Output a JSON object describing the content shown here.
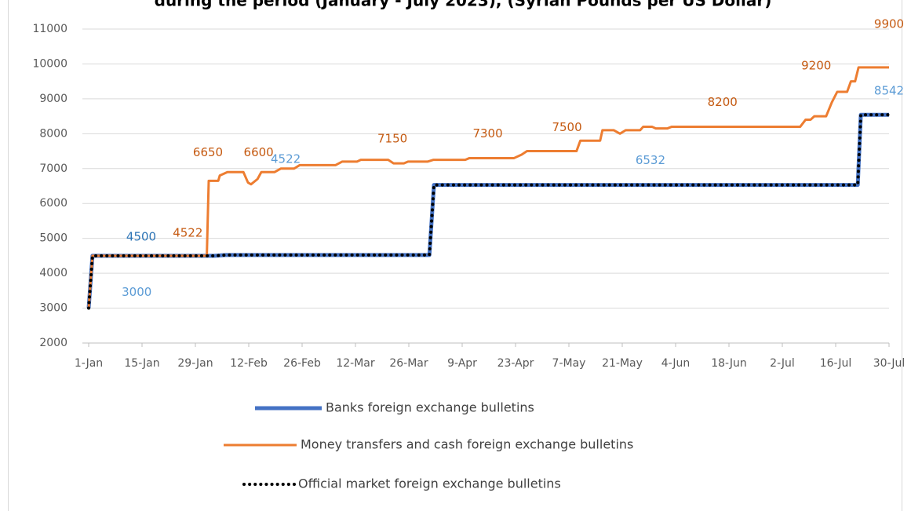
{
  "chart_data": {
    "type": "line",
    "title": "during the period (January - July 2023), (Syrian Pounds per US Dollar)",
    "xlim": [
      0,
      210
    ],
    "xticks": [
      {
        "value": 0,
        "label": "1-Jan"
      },
      {
        "value": 14,
        "label": "15-Jan"
      },
      {
        "value": 28,
        "label": "29-Jan"
      },
      {
        "value": 42,
        "label": "12-Feb"
      },
      {
        "value": 56,
        "label": "26-Feb"
      },
      {
        "value": 70,
        "label": "12-Mar"
      },
      {
        "value": 84,
        "label": "26-Mar"
      },
      {
        "value": 98,
        "label": "9-Apr"
      },
      {
        "value": 112,
        "label": "23-Apr"
      },
      {
        "value": 126,
        "label": "7-May"
      },
      {
        "value": 140,
        "label": "21-May"
      },
      {
        "value": 154,
        "label": "4-Jun"
      },
      {
        "value": 168,
        "label": "18-Jun"
      },
      {
        "value": 182,
        "label": "2-Jul"
      },
      {
        "value": 196,
        "label": "16-Jul"
      },
      {
        "value": 210,
        "label": "30-Jul"
      }
    ],
    "ylim": [
      2000,
      11000
    ],
    "yticks": [
      2000,
      3000,
      4000,
      5000,
      6000,
      7000,
      8000,
      9000,
      10000,
      11000
    ],
    "grid": true,
    "legend": "bottom",
    "series": [
      {
        "name": "Banks foreign exchange bulletins",
        "color": "#4472c4",
        "style": "solid",
        "x": [
          0,
          1,
          33,
          36,
          89.4,
          90.6,
          201.8,
          202.6,
          210
        ],
        "values": [
          3000,
          4500,
          4500,
          4522,
          4522,
          6532,
          6532,
          8542,
          8542
        ]
      },
      {
        "name": "Money transfers and cash foreign exchange bulletins",
        "color": "#ed7d31",
        "style": "solid",
        "x": [
          0,
          1,
          31,
          31.5,
          34,
          34.4,
          36.4,
          40.6,
          41.8,
          42.6,
          44.3,
          45.3,
          48.8,
          50.4,
          53.9,
          55.4,
          64.8,
          66.5,
          70.4,
          71.4,
          78.6,
          80,
          82.7,
          83.8,
          88.9,
          90.4,
          98.8,
          99.9,
          111.6,
          113.6,
          115,
          128,
          129,
          134.2,
          134.8,
          137.8,
          139.4,
          140.9,
          144.7,
          145.5,
          147.8,
          148.8,
          151.8,
          153,
          186.7,
          188.1,
          189.4,
          190.4,
          193.5,
          195,
          196.4,
          199,
          200,
          201.1,
          202,
          210
        ],
        "values": [
          3000,
          4500,
          4500,
          6650,
          6650,
          6800,
          6900,
          6900,
          6600,
          6550,
          6700,
          6900,
          6900,
          7000,
          7000,
          7100,
          7100,
          7200,
          7200,
          7250,
          7250,
          7150,
          7150,
          7200,
          7200,
          7250,
          7250,
          7300,
          7300,
          7400,
          7500,
          7500,
          7800,
          7800,
          8100,
          8100,
          8000,
          8100,
          8100,
          8200,
          8200,
          8150,
          8150,
          8200,
          8200,
          8400,
          8400,
          8500,
          8500,
          8900,
          9200,
          9200,
          9500,
          9500,
          9900,
          9900
        ]
      },
      {
        "name": "Official market foreign exchange bulletins",
        "color": "#000000",
        "style": "dotted",
        "x": [
          0,
          1,
          33,
          36,
          89.4,
          90.6,
          201.8,
          202.6,
          210
        ],
        "values": [
          3000,
          4500,
          4500,
          4522,
          4522,
          6532,
          6532,
          8542,
          8542
        ]
      }
    ],
    "annotations": [
      {
        "text": "3000",
        "x": 6.2,
        "value": 3000,
        "color": "#5b9bd5"
      },
      {
        "text": "4500",
        "x": 13.8,
        "value": 4500,
        "color": "#2e75b6"
      },
      {
        "text": "4522",
        "x": 26,
        "value": 4522,
        "color": "#c55a11"
      },
      {
        "text": "6650",
        "x": 31.3,
        "value": 6650,
        "color": "#c55a11"
      },
      {
        "text": "6600",
        "x": 44.6,
        "value": 6600,
        "color": "#c55a11"
      },
      {
        "text": "4522",
        "x": 51.7,
        "value": 4522,
        "color": "#5b9bd5"
      },
      {
        "text": "7150",
        "x": 79.7,
        "value": 7150,
        "color": "#c55a11"
      },
      {
        "text": "7300",
        "x": 104.7,
        "value": 7300,
        "color": "#c55a11"
      },
      {
        "text": "7500",
        "x": 125.5,
        "value": 7500,
        "color": "#c55a11"
      },
      {
        "text": "6532",
        "x": 147.4,
        "value": 6532,
        "color": "#5b9bd5"
      },
      {
        "text": "8200",
        "x": 166.3,
        "value": 8200,
        "color": "#c55a11"
      },
      {
        "text": "9200",
        "x": 190.9,
        "value": 9200,
        "color": "#c55a11"
      },
      {
        "text": "8542",
        "x": 210,
        "value": 8542,
        "color": "#5b9bd5"
      },
      {
        "text": "9900",
        "x": 210,
        "value": 9900,
        "color": "#c55a11"
      }
    ]
  }
}
